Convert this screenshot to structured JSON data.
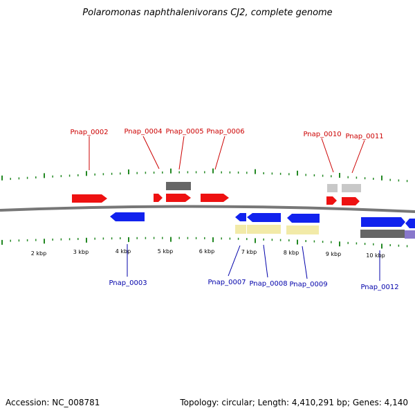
{
  "title": "Polaromonas naphthalenivorans CJ2, complete genome",
  "footer": {
    "accession": "Accession: NC_008781",
    "summary": "Topology: circular; Length: 4,410,291 bp; Genes: 4,140"
  },
  "scale_labels": [
    "2 kbp",
    "3 kbp",
    "4 kbp",
    "5 kbp",
    "6 kbp",
    "7 kbp",
    "8 kbp",
    "9 kbp",
    "10 kbp"
  ],
  "colors": {
    "forward_gene": "#ee1111",
    "reverse_gene": "#1122ee",
    "forward_label": "#cc0000",
    "reverse_label": "#0000aa",
    "backbone": "#777777",
    "tick": "#228822",
    "dark_grey_block": "#666666",
    "light_grey_block": "#c8c8c8",
    "yellow_block": "#f2eaa8",
    "lavender_block": "#8877cc"
  },
  "gene_labels_forward": [
    "Pnap_0002",
    "Pnap_0004",
    "Pnap_0005",
    "Pnap_0006",
    "Pnap_0010",
    "Pnap_0011"
  ],
  "gene_labels_reverse": [
    "Pnap_0003",
    "Pnap_0007",
    "Pnap_0008",
    "Pnap_0009",
    "Pnap_0012"
  ]
}
